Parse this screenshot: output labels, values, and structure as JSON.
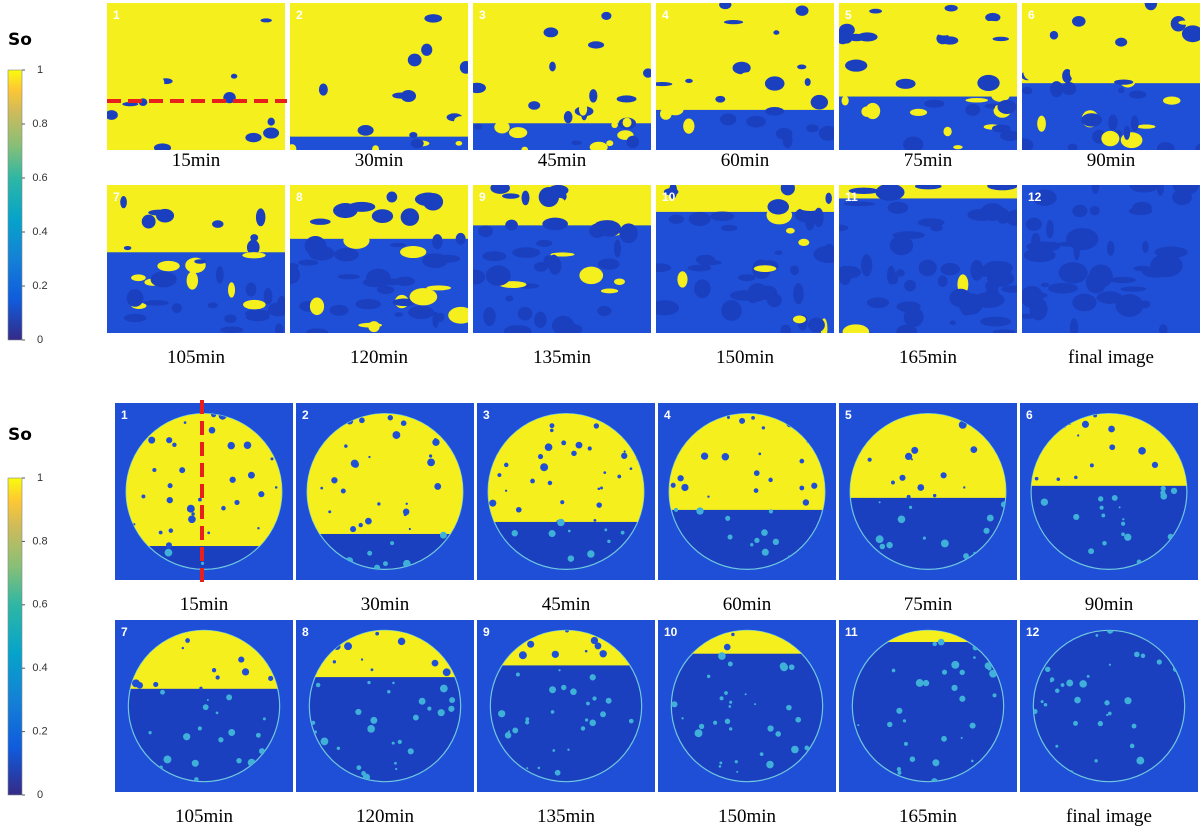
{
  "panels": [
    {
      "colorbar": {
        "label": "So",
        "ticks": [
          0,
          0.2,
          0.4,
          0.6,
          0.8,
          1
        ]
      },
      "images": [
        {
          "number": "1",
          "caption": "15min"
        },
        {
          "number": "2",
          "caption": "30min"
        },
        {
          "number": "3",
          "caption": "45min"
        },
        {
          "number": "4",
          "caption": "60min"
        },
        {
          "number": "5",
          "caption": "75min"
        },
        {
          "number": "6",
          "caption": "90min"
        },
        {
          "number": "7",
          "caption": "105min"
        },
        {
          "number": "8",
          "caption": "120min"
        },
        {
          "number": "9",
          "caption": "135min"
        },
        {
          "number": "10",
          "caption": "150min"
        },
        {
          "number": "11",
          "caption": "165min"
        },
        {
          "number": "12",
          "caption": "final image"
        }
      ]
    },
    {
      "colorbar": {
        "label": "So",
        "ticks": [
          0,
          0.2,
          0.4,
          0.6,
          0.8,
          1
        ]
      },
      "images": [
        {
          "number": "1",
          "caption": "15min"
        },
        {
          "number": "2",
          "caption": "30min"
        },
        {
          "number": "3",
          "caption": "45min"
        },
        {
          "number": "4",
          "caption": "60min"
        },
        {
          "number": "5",
          "caption": "75min"
        },
        {
          "number": "6",
          "caption": "90min"
        },
        {
          "number": "7",
          "caption": "105min"
        },
        {
          "number": "8",
          "caption": "120min"
        },
        {
          "number": "9",
          "caption": "135min"
        },
        {
          "number": "10",
          "caption": "150min"
        },
        {
          "number": "11",
          "caption": "165min"
        },
        {
          "number": "12",
          "caption": "final image"
        }
      ]
    }
  ]
}
